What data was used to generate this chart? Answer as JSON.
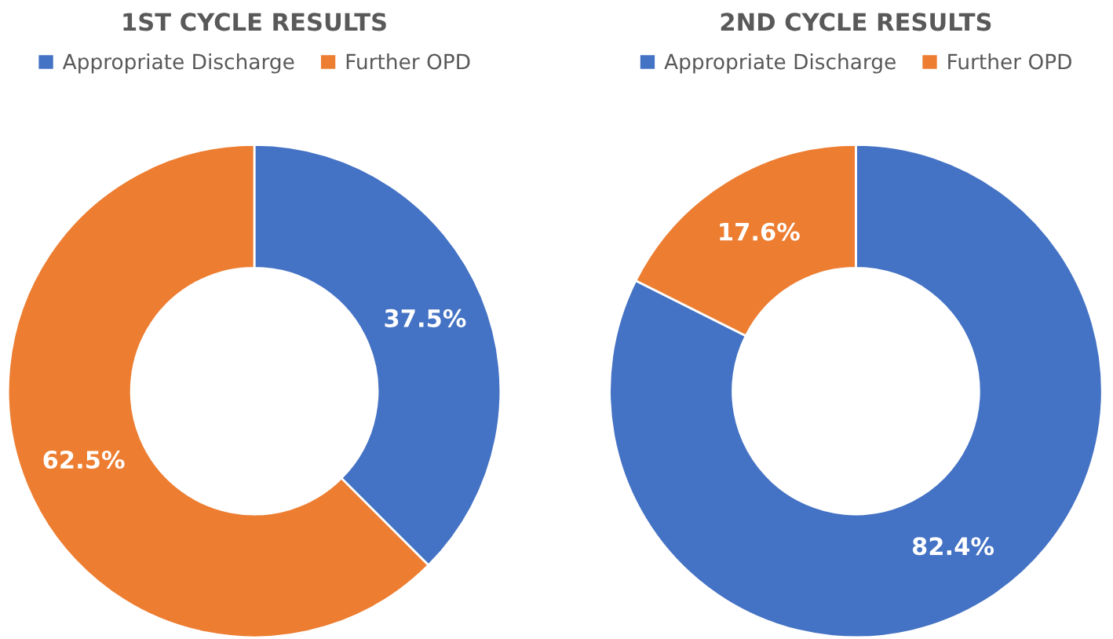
{
  "chart_data": [
    {
      "type": "donut",
      "title": "1ST CYCLE RESULTS",
      "categories": [
        "Appropriate Discharge",
        "Further OPD"
      ],
      "values": [
        37.5,
        62.5
      ],
      "colors": [
        "#4472c4",
        "#ed7d31"
      ],
      "value_labels": [
        "37.5%",
        "62.5%"
      ],
      "legend": "top"
    },
    {
      "type": "donut",
      "title": "2ND CYCLE RESULTS",
      "categories": [
        "Appropriate Discharge",
        "Further OPD"
      ],
      "values": [
        82.4,
        17.6
      ],
      "colors": [
        "#4472c4",
        "#ed7d31"
      ],
      "value_labels": [
        "82.4%",
        "17.6%"
      ],
      "legend": "top"
    }
  ]
}
